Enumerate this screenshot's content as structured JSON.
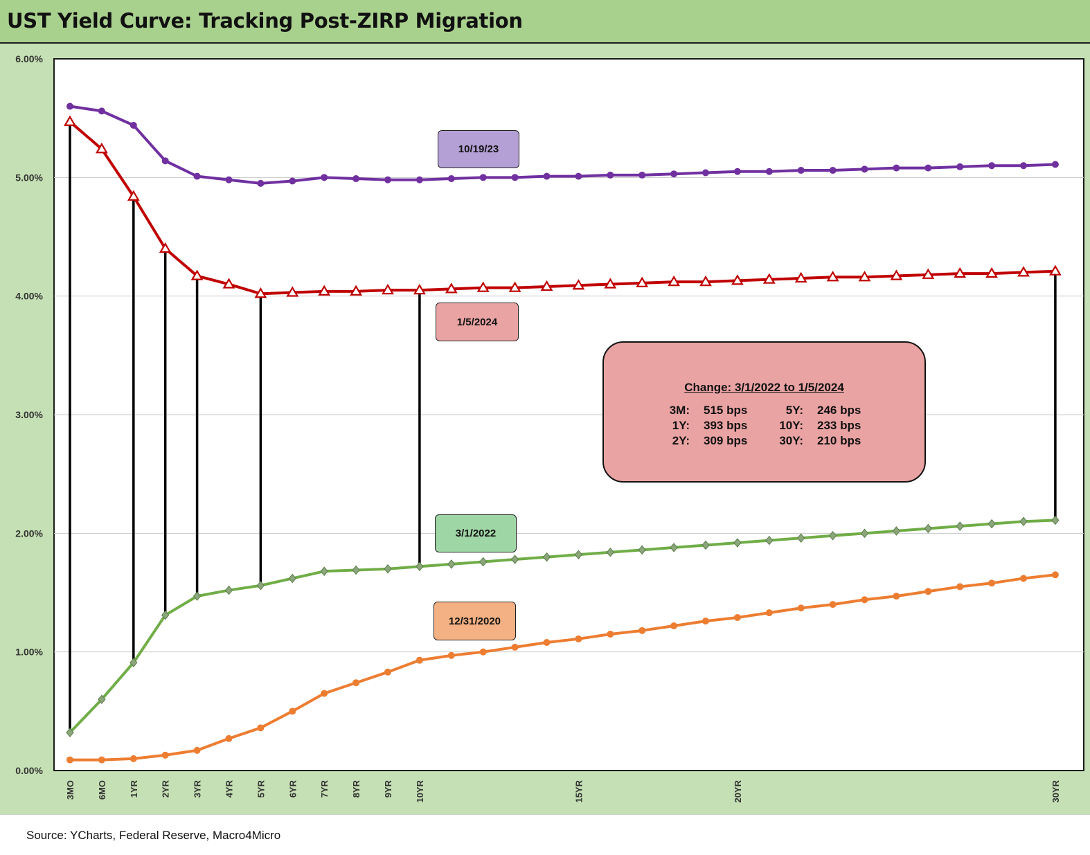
{
  "title": "UST Yield Curve: Tracking Post-ZIRP Migration",
  "source": "Source: YCharts, Federal Reserve, Macro4Micro",
  "change_box": {
    "title": "Change: 3/1/2022 to 1/5/2024",
    "rows": [
      {
        "k1": "3M:",
        "v1": "515 bps",
        "k2": "5Y:",
        "v2": "246 bps"
      },
      {
        "k1": "1Y:",
        "v1": "393 bps",
        "k2": "10Y:",
        "v2": "233 bps"
      },
      {
        "k1": "2Y:",
        "v1": "309 bps",
        "k2": "30Y:",
        "v2": "210 bps"
      }
    ]
  },
  "chart_data": {
    "type": "line",
    "title": "UST Yield Curve: Tracking Post-ZIRP Migration",
    "xlabel": "",
    "ylabel": "",
    "ylim": [
      0,
      6
    ],
    "y_ticks": [
      "0.00%",
      "1.00%",
      "2.00%",
      "3.00%",
      "4.00%",
      "5.00%",
      "6.00%"
    ],
    "x_tick_labels": [
      "3MO",
      "6MO",
      "1YR",
      "2YR",
      "3YR",
      "4YR",
      "5YR",
      "6YR",
      "7YR",
      "8YR",
      "9YR",
      "10YR",
      "",
      "",
      "",
      "",
      "15YR",
      "",
      "",
      "",
      "",
      "20YR",
      "",
      "",
      "",
      "",
      "",
      "",
      "",
      "",
      "",
      "30YR"
    ],
    "grid": true,
    "legend": "none",
    "series": [
      {
        "name": "10/19/23",
        "color": "#7030a0",
        "marker": "circle",
        "values": [
          5.6,
          5.56,
          5.44,
          5.14,
          5.01,
          4.98,
          4.95,
          4.97,
          5.0,
          4.99,
          4.98,
          4.98,
          4.99,
          5.0,
          5.0,
          5.01,
          5.01,
          5.02,
          5.02,
          5.03,
          5.04,
          5.05,
          5.05,
          5.06,
          5.06,
          5.07,
          5.08,
          5.08,
          5.09,
          5.1,
          5.1,
          5.11
        ]
      },
      {
        "name": "1/5/2024",
        "color": "#c00000",
        "marker": "triangle",
        "values": [
          5.47,
          5.24,
          4.84,
          4.4,
          4.17,
          4.1,
          4.02,
          4.03,
          4.04,
          4.04,
          4.05,
          4.05,
          4.06,
          4.07,
          4.07,
          4.08,
          4.09,
          4.1,
          4.11,
          4.12,
          4.12,
          4.13,
          4.14,
          4.15,
          4.16,
          4.16,
          4.17,
          4.18,
          4.19,
          4.19,
          4.2,
          4.21
        ]
      },
      {
        "name": "3/1/2022",
        "color": "#70ad47",
        "marker": "diamond",
        "values": [
          0.32,
          0.6,
          0.91,
          1.31,
          1.47,
          1.52,
          1.56,
          1.62,
          1.68,
          1.69,
          1.7,
          1.72,
          1.74,
          1.76,
          1.78,
          1.8,
          1.82,
          1.84,
          1.86,
          1.88,
          1.9,
          1.92,
          1.94,
          1.96,
          1.98,
          2.0,
          2.02,
          2.04,
          2.06,
          2.08,
          2.1,
          2.11
        ]
      },
      {
        "name": "12/31/2020",
        "color": "#ed7d31",
        "marker": "circle",
        "values": [
          0.09,
          0.09,
          0.1,
          0.13,
          0.17,
          0.27,
          0.36,
          0.5,
          0.65,
          0.74,
          0.83,
          0.93,
          0.97,
          1.0,
          1.04,
          1.08,
          1.11,
          1.15,
          1.18,
          1.22,
          1.26,
          1.29,
          1.33,
          1.37,
          1.4,
          1.44,
          1.47,
          1.51,
          1.55,
          1.58,
          1.62,
          1.65
        ]
      }
    ],
    "change_connectors": [
      {
        "x_index": 0,
        "from": 0.32,
        "to": 5.47
      },
      {
        "x_index": 2,
        "from": 0.91,
        "to": 4.84
      },
      {
        "x_index": 3,
        "from": 1.31,
        "to": 4.4
      },
      {
        "x_index": 4,
        "from": 1.47,
        "to": 4.17
      },
      {
        "x_index": 6,
        "from": 1.56,
        "to": 4.02
      },
      {
        "x_index": 11,
        "from": 1.72,
        "to": 4.05
      },
      {
        "x_index": 31,
        "from": 2.11,
        "to": 4.21
      }
    ],
    "series_labels": [
      {
        "text": "10/19/23",
        "fill": "#b4a0d5"
      },
      {
        "text": "1/5/2024",
        "fill": "#eaa3a3"
      },
      {
        "text": "3/1/2022",
        "fill": "#9fd6a5"
      },
      {
        "text": "12/31/2020",
        "fill": "#f4b183"
      }
    ]
  }
}
